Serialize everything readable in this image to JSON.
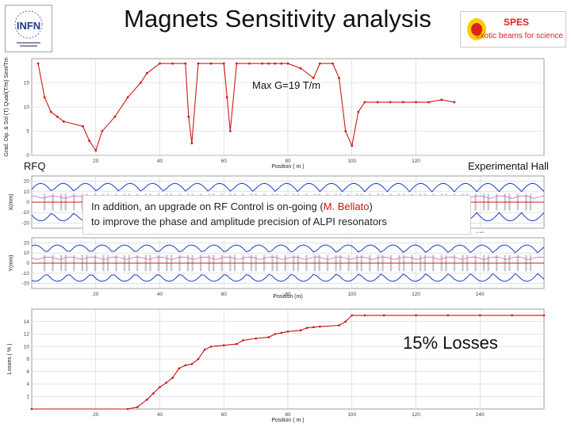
{
  "header": {
    "title": "Magnets Sensitivity analysis",
    "infn_logo_text": "INFN",
    "spes_logo_text": "SPES",
    "spes_logo_tagline": "exotic beams for science"
  },
  "labels": {
    "max_gradient": "Max G=19 T/m",
    "rfq": "RFQ",
    "experimental_hall": "Experimental Hall",
    "losses_percent": "15% Losses"
  },
  "annotation": {
    "text_before": "In addition, an upgrade on RF Control is on-going (",
    "highlight": "M. Bellato",
    "text_after": ")",
    "line2": "to improve the phase and amplitude precision of ALPI resonators"
  },
  "colors": {
    "gradient_curve": "#d01818",
    "envelope_blue": "#1a3cc8",
    "envelope_red": "#d01818",
    "envelope_pink": "#e060c0",
    "losses_curve": "#cc1010",
    "highlight": "#d01010"
  },
  "chart_data": [
    {
      "type": "line",
      "name": "gradient",
      "xlabel": "Position ( m )",
      "ylabel": "Grad. Dip. & Sol (T) Quad(T/m) Sext/Tm",
      "xlim": [
        0,
        160
      ],
      "ylim": [
        0,
        20
      ],
      "xticks": [
        20,
        40,
        60,
        80,
        100,
        120
      ],
      "yticks": [
        0,
        5,
        10,
        15
      ],
      "grid": true,
      "x": [
        2,
        4,
        6,
        8,
        10,
        16,
        18,
        20,
        22,
        26,
        30,
        34,
        36,
        40,
        44,
        48,
        49,
        50,
        52,
        56,
        60,
        61,
        62,
        64,
        68,
        72,
        74,
        76,
        78,
        80,
        84,
        88,
        90,
        94,
        96,
        98,
        100,
        102,
        104,
        108,
        112,
        116,
        120,
        124,
        128,
        132
      ],
      "values": [
        19,
        12,
        9,
        8,
        7,
        6,
        3,
        1,
        5,
        8,
        12,
        15,
        17,
        19,
        19,
        19,
        8,
        2.5,
        19,
        19,
        19,
        12,
        5,
        19,
        19,
        19,
        19,
        19,
        19,
        19,
        18,
        16,
        19,
        19,
        16,
        5,
        2,
        9,
        11,
        11,
        11,
        11,
        11,
        11,
        11.5,
        11
      ]
    },
    {
      "type": "line",
      "name": "envelope-transverse",
      "ylabel": "X(mm)",
      "xlim": [
        0,
        160
      ],
      "ylim": [
        -25,
        25
      ],
      "yticks": [
        -20,
        -10,
        0,
        10,
        20
      ],
      "xticks": [
        20,
        40,
        60,
        80,
        100,
        120,
        140
      ],
      "grid": true
    },
    {
      "type": "line",
      "name": "envelope-longitudinal",
      "xlabel": "Position (m)",
      "ylabel": "Y(mm)",
      "xlim": [
        0,
        160
      ],
      "ylim": [
        -25,
        25
      ],
      "yticks": [
        -20,
        -10,
        0,
        10,
        20
      ],
      "xticks": [
        20,
        40,
        60,
        80,
        100,
        120,
        140
      ],
      "grid": true
    },
    {
      "type": "line",
      "name": "losses",
      "xlabel": "Position ( m )",
      "ylabel": "Losses ( % )",
      "xlim": [
        0,
        160
      ],
      "ylim": [
        0,
        16
      ],
      "xticks": [
        20,
        40,
        60,
        80,
        100,
        120,
        140
      ],
      "yticks": [
        2,
        4,
        6,
        8,
        10,
        12,
        14
      ],
      "grid": true,
      "x": [
        0,
        30,
        33,
        36,
        38,
        40,
        42,
        44,
        46,
        48,
        50,
        52,
        54,
        56,
        60,
        64,
        66,
        70,
        74,
        76,
        78,
        80,
        84,
        86,
        88,
        90,
        96,
        98,
        100,
        104,
        110,
        120,
        130,
        140,
        150,
        160
      ],
      "values": [
        0,
        0,
        0.3,
        1.5,
        2.5,
        3.5,
        4.2,
        5,
        6.5,
        7,
        7.2,
        8,
        9.5,
        10,
        10.2,
        10.4,
        11,
        11.3,
        11.5,
        12,
        12.2,
        12.4,
        12.6,
        13,
        13.1,
        13.2,
        13.4,
        14,
        15,
        15,
        15,
        15,
        15,
        15,
        15,
        15
      ]
    }
  ]
}
